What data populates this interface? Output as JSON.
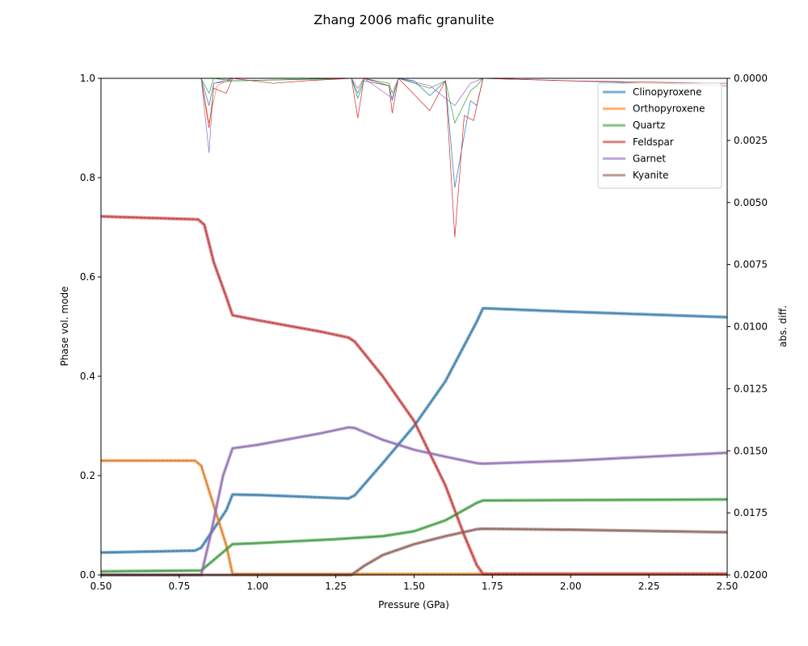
{
  "chart_data": {
    "type": "line",
    "title": "Zhang 2006 mafic granulite",
    "xlabel": "Pressure (GPa)",
    "ylabel": "Phase vol. mode",
    "ylabel_right": "abs. diff.",
    "xlim": [
      0.5,
      2.5
    ],
    "ylim": [
      0,
      1.0
    ],
    "ylim_right_top_to_bottom": [
      0.0,
      0.02
    ],
    "x_ticks": [
      "0.50",
      "0.75",
      "1.00",
      "1.25",
      "1.50",
      "1.75",
      "2.00",
      "2.25",
      "2.50"
    ],
    "y_ticks": [
      "0.0",
      "0.2",
      "0.4",
      "0.6",
      "0.8",
      "1.0"
    ],
    "y_ticks_right": [
      "0.0000",
      "0.0025",
      "0.0050",
      "0.0075",
      "0.0100",
      "0.0125",
      "0.0150",
      "0.0175",
      "0.0200"
    ],
    "legend_position": "top-right",
    "series": [
      {
        "name": "Clinopyroxene",
        "color": "#1f77b4",
        "points": [
          [
            0.5,
            0.045
          ],
          [
            0.8,
            0.049
          ],
          [
            0.82,
            0.055
          ],
          [
            0.9,
            0.13
          ],
          [
            0.92,
            0.162
          ],
          [
            1.0,
            0.161
          ],
          [
            1.25,
            0.155
          ],
          [
            1.29,
            0.154
          ],
          [
            1.31,
            0.16
          ],
          [
            1.4,
            0.225
          ],
          [
            1.5,
            0.3
          ],
          [
            1.6,
            0.39
          ],
          [
            1.7,
            0.51
          ],
          [
            1.72,
            0.537
          ],
          [
            2.0,
            0.53
          ],
          [
            2.5,
            0.519
          ]
        ]
      },
      {
        "name": "Orthopyroxene",
        "color": "#ff7f0e",
        "points": [
          [
            0.5,
            0.23
          ],
          [
            0.8,
            0.23
          ],
          [
            0.82,
            0.22
          ],
          [
            0.86,
            0.14
          ],
          [
            0.9,
            0.06
          ],
          [
            0.92,
            0.002
          ],
          [
            2.5,
            0.002
          ]
        ]
      },
      {
        "name": "Quartz",
        "color": "#2ca02c",
        "points": [
          [
            0.5,
            0.007
          ],
          [
            0.82,
            0.009
          ],
          [
            0.86,
            0.03
          ],
          [
            0.92,
            0.062
          ],
          [
            1.0,
            0.064
          ],
          [
            1.25,
            0.072
          ],
          [
            1.4,
            0.078
          ],
          [
            1.5,
            0.088
          ],
          [
            1.6,
            0.11
          ],
          [
            1.7,
            0.145
          ],
          [
            1.72,
            0.15
          ],
          [
            2.5,
            0.152
          ]
        ]
      },
      {
        "name": "Feldspar",
        "color": "#d62728",
        "points": [
          [
            0.5,
            0.722
          ],
          [
            0.81,
            0.716
          ],
          [
            0.83,
            0.705
          ],
          [
            0.86,
            0.63
          ],
          [
            0.9,
            0.56
          ],
          [
            0.92,
            0.523
          ],
          [
            1.0,
            0.513
          ],
          [
            1.2,
            0.49
          ],
          [
            1.29,
            0.478
          ],
          [
            1.31,
            0.47
          ],
          [
            1.4,
            0.4
          ],
          [
            1.5,
            0.31
          ],
          [
            1.6,
            0.18
          ],
          [
            1.66,
            0.08
          ],
          [
            1.7,
            0.02
          ],
          [
            1.72,
            0.002
          ],
          [
            2.5,
            0.002
          ]
        ]
      },
      {
        "name": "Garnet",
        "color": "#9467bd",
        "points": [
          [
            0.5,
            0.0
          ],
          [
            0.82,
            0.0
          ],
          [
            0.85,
            0.08
          ],
          [
            0.89,
            0.2
          ],
          [
            0.92,
            0.255
          ],
          [
            1.0,
            0.262
          ],
          [
            1.2,
            0.285
          ],
          [
            1.29,
            0.297
          ],
          [
            1.31,
            0.296
          ],
          [
            1.4,
            0.272
          ],
          [
            1.5,
            0.252
          ],
          [
            1.6,
            0.238
          ],
          [
            1.7,
            0.225
          ],
          [
            1.72,
            0.224
          ],
          [
            2.0,
            0.23
          ],
          [
            2.5,
            0.246
          ]
        ]
      },
      {
        "name": "Kyanite",
        "color": "#8c564b",
        "points": [
          [
            0.5,
            0.0
          ],
          [
            1.3,
            0.0
          ],
          [
            1.34,
            0.018
          ],
          [
            1.4,
            0.04
          ],
          [
            1.5,
            0.062
          ],
          [
            1.6,
            0.078
          ],
          [
            1.7,
            0.092
          ],
          [
            1.72,
            0.093
          ],
          [
            2.0,
            0.091
          ],
          [
            2.5,
            0.086
          ]
        ]
      }
    ],
    "diff_series": [
      {
        "name": "Clinopyroxene",
        "color": "#1f77b4",
        "points": [
          [
            0.5,
            0.0
          ],
          [
            0.82,
            0.0
          ],
          [
            0.845,
            0.0011
          ],
          [
            0.86,
            0.0002
          ],
          [
            0.92,
            0.0001
          ],
          [
            1.3,
            0.0
          ],
          [
            1.32,
            0.0008
          ],
          [
            1.34,
            0.0001
          ],
          [
            1.42,
            0.0003
          ],
          [
            1.43,
            0.0009
          ],
          [
            1.45,
            0.0
          ],
          [
            1.5,
            0.0001
          ],
          [
            1.55,
            0.0007
          ],
          [
            1.6,
            0.0001
          ],
          [
            1.63,
            0.0044
          ],
          [
            1.68,
            0.0009
          ],
          [
            1.7,
            0.0011
          ],
          [
            1.72,
            0.0
          ],
          [
            2.0,
            0.0001
          ],
          [
            2.25,
            0.0002
          ],
          [
            2.5,
            0.0003
          ]
        ]
      },
      {
        "name": "Orthopyroxene",
        "color": "#ff7f0e",
        "points": [
          [
            0.5,
            0.0
          ],
          [
            0.82,
            0.0
          ],
          [
            0.845,
            0.0018
          ],
          [
            0.87,
            0.0003
          ],
          [
            0.92,
            0.0
          ],
          [
            2.5,
            0.0
          ]
        ]
      },
      {
        "name": "Quartz",
        "color": "#2ca02c",
        "points": [
          [
            0.5,
            0.0
          ],
          [
            0.82,
            0.0
          ],
          [
            0.845,
            0.0006
          ],
          [
            0.86,
            0.0
          ],
          [
            0.92,
            0.0001
          ],
          [
            1.3,
            0.0
          ],
          [
            1.32,
            0.0006
          ],
          [
            1.34,
            0.0
          ],
          [
            1.42,
            0.0002
          ],
          [
            1.43,
            0.0006
          ],
          [
            1.45,
            0.0
          ],
          [
            1.55,
            0.0004
          ],
          [
            1.6,
            0.0001
          ],
          [
            1.63,
            0.0018
          ],
          [
            1.68,
            0.0005
          ],
          [
            1.7,
            0.0003
          ],
          [
            1.72,
            0.0
          ],
          [
            2.5,
            0.0
          ]
        ]
      },
      {
        "name": "Feldspar",
        "color": "#d62728",
        "points": [
          [
            0.5,
            0.0
          ],
          [
            0.82,
            0.0
          ],
          [
            0.845,
            0.002
          ],
          [
            0.86,
            0.0004
          ],
          [
            0.9,
            0.0006
          ],
          [
            0.92,
            0.0
          ],
          [
            1.05,
            0.0002
          ],
          [
            1.15,
            0.0001
          ],
          [
            1.3,
            0.0
          ],
          [
            1.32,
            0.0016
          ],
          [
            1.34,
            0.0
          ],
          [
            1.42,
            0.0003
          ],
          [
            1.43,
            0.0014
          ],
          [
            1.45,
            0.0
          ],
          [
            1.55,
            0.0013
          ],
          [
            1.6,
            0.0001
          ],
          [
            1.63,
            0.0064
          ],
          [
            1.66,
            0.0015
          ],
          [
            1.69,
            0.0017
          ],
          [
            1.72,
            0.0
          ],
          [
            2.0,
            0.0001
          ],
          [
            2.5,
            0.0002
          ]
        ]
      },
      {
        "name": "Garnet",
        "color": "#9467bd",
        "points": [
          [
            0.5,
            0.0
          ],
          [
            0.82,
            0.0
          ],
          [
            0.845,
            0.003
          ],
          [
            0.86,
            0.0002
          ],
          [
            0.92,
            0.0
          ],
          [
            1.3,
            0.0
          ],
          [
            1.32,
            0.0004
          ],
          [
            1.34,
            0.0
          ],
          [
            1.43,
            0.0008
          ],
          [
            1.45,
            0.0
          ],
          [
            1.55,
            0.0003
          ],
          [
            1.63,
            0.0011
          ],
          [
            1.68,
            0.0002
          ],
          [
            1.72,
            0.0
          ],
          [
            2.5,
            0.0
          ]
        ]
      },
      {
        "name": "Kyanite",
        "color": "#8c564b",
        "points": [
          [
            0.5,
            0.0
          ],
          [
            2.5,
            0.0
          ]
        ]
      }
    ]
  }
}
